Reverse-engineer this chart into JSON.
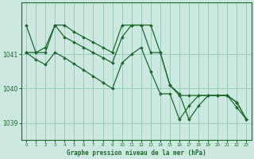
{
  "title": "Graphe pression niveau de la mer (hPa)",
  "bg_color": "#cce8e0",
  "grid_color": "#99ccbb",
  "line_color": "#1a6b2a",
  "xlim": [
    -0.5,
    23.5
  ],
  "ylim": [
    1038.5,
    1042.5
  ],
  "yticks": [
    1039,
    1040,
    1041
  ],
  "xticks": [
    0,
    1,
    2,
    3,
    4,
    5,
    6,
    7,
    8,
    9,
    10,
    11,
    12,
    13,
    14,
    15,
    16,
    17,
    18,
    19,
    20,
    21,
    22,
    23
  ],
  "series": [
    [
      1041.85,
      1041.05,
      1041.05,
      1041.85,
      1041.85,
      1041.65,
      1041.5,
      1041.35,
      1041.2,
      1041.05,
      1041.85,
      1041.85,
      1041.85,
      1041.85,
      1041.05,
      1040.1,
      1039.8,
      1039.8,
      1039.8,
      1039.8,
      1039.8,
      1039.8,
      1039.45,
      1039.1
    ],
    [
      1041.05,
      1041.05,
      1041.2,
      1041.85,
      1041.5,
      1041.35,
      1041.2,
      1041.05,
      1040.9,
      1040.75,
      1041.5,
      1041.85,
      1041.85,
      1041.05,
      1041.05,
      1040.1,
      1039.85,
      1039.1,
      1039.5,
      1039.8,
      1039.8,
      1039.8,
      1039.6,
      1039.1
    ],
    [
      1041.05,
      1040.85,
      1040.7,
      1041.05,
      1040.9,
      1040.72,
      1040.54,
      1040.36,
      1040.18,
      1040.0,
      1040.75,
      1041.0,
      1041.2,
      1040.5,
      1039.85,
      1039.85,
      1039.1,
      1039.5,
      1039.8,
      1039.8,
      1039.8,
      1039.8,
      1039.6,
      1039.1
    ]
  ]
}
